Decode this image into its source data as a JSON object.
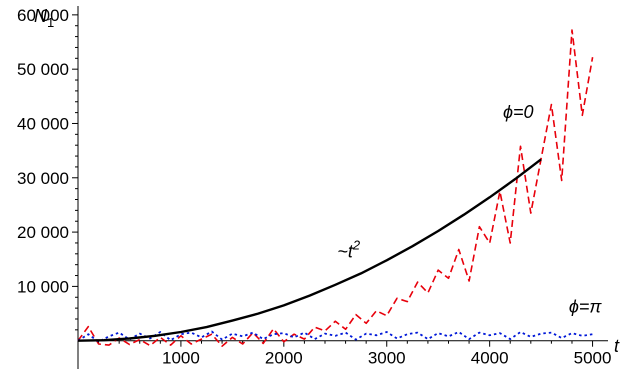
{
  "chart_data": {
    "type": "line",
    "ylabel": "N",
    "ylabel_sub": "1",
    "xlabel": "t",
    "xlim": [
      0,
      5150
    ],
    "ylim": [
      -3000,
      62000
    ],
    "x_ticks": [
      1000,
      2000,
      3000,
      4000,
      5000
    ],
    "x_tick_labels": [
      "1000",
      "2000",
      "3000",
      "4000",
      "5000"
    ],
    "y_ticks": [
      10000,
      20000,
      30000,
      40000,
      50000,
      60000
    ],
    "y_tick_labels": [
      "10 000",
      "20 000",
      "30 000",
      "40 000",
      "50 000",
      "60 000"
    ],
    "grid": false,
    "annotations": [
      {
        "text": "ϕ=0",
        "x": 4130,
        "y": 41000
      },
      {
        "text": "~t",
        "sup": "2",
        "x": 2520,
        "y": 15300
      },
      {
        "text": "ϕ=π",
        "x": 4770,
        "y": 5200
      }
    ],
    "series": [
      {
        "style": "dashed",
        "color": "#e8000b",
        "x": [
          0,
          100,
          200,
          300,
          400,
          500,
          600,
          700,
          800,
          900,
          1000,
          1100,
          1200,
          1300,
          1400,
          1500,
          1600,
          1700,
          1800,
          1900,
          2000,
          2100,
          2200,
          2300,
          2400,
          2500,
          2600,
          2700,
          2800,
          2900,
          3000,
          3100,
          3200,
          3300,
          3400,
          3500,
          3600,
          3700,
          3800,
          3900,
          4000,
          4100,
          4200,
          4300,
          4400,
          4500,
          4600,
          4700,
          4800,
          4900,
          5000
        ],
        "values": [
          0,
          2600,
          -600,
          -800,
          500,
          -700,
          200,
          -900,
          600,
          -800,
          900,
          -600,
          300,
          1200,
          -1000,
          600,
          -600,
          1500,
          -500,
          2200,
          -200,
          1200,
          300,
          2500,
          1800,
          3600,
          2100,
          4800,
          3200,
          5500,
          4600,
          7800,
          7200,
          10800,
          8800,
          13000,
          11500,
          16800,
          11000,
          21000,
          18000,
          27500,
          18000,
          35800,
          23500,
          33500,
          43500,
          29500,
          57200,
          41500,
          52200
        ]
      },
      {
        "style": "dotted",
        "color": "#0018d8",
        "x": [
          0,
          100,
          200,
          300,
          400,
          500,
          600,
          700,
          800,
          900,
          1000,
          1100,
          1200,
          1300,
          1400,
          1500,
          1600,
          1700,
          1800,
          1900,
          2000,
          2100,
          2200,
          2300,
          2400,
          2500,
          2600,
          2700,
          2800,
          2900,
          3000,
          3100,
          3200,
          3300,
          3400,
          3500,
          3600,
          3700,
          3800,
          3900,
          4000,
          4100,
          4200,
          4300,
          4400,
          4500,
          4600,
          4700,
          4800,
          4900,
          5000
        ],
        "values": [
          0,
          1200,
          -200,
          800,
          1500,
          200,
          1300,
          400,
          1600,
          100,
          1200,
          1500,
          600,
          1700,
          200,
          1300,
          800,
          1500,
          300,
          1200,
          1400,
          600,
          1500,
          300,
          1300,
          900,
          1500,
          200,
          1300,
          1000,
          1600,
          400,
          1200,
          1500,
          300,
          1400,
          800,
          1600,
          300,
          1500,
          1000,
          1400,
          300,
          1600,
          700,
          1300,
          1500,
          500,
          1400,
          900,
          1200
        ]
      },
      {
        "style": "solid",
        "color": "#000000",
        "x": [
          0,
          250,
          500,
          750,
          1000,
          1250,
          1500,
          1750,
          2000,
          2250,
          2500,
          2750,
          3000,
          3250,
          3500,
          3750,
          4000,
          4250,
          4500
        ],
        "values": [
          0,
          100,
          400,
          900,
          1600,
          2500,
          3700,
          5000,
          6500,
          8300,
          10300,
          12400,
          14800,
          17400,
          20200,
          23200,
          26400,
          29800,
          33400
        ]
      }
    ]
  }
}
